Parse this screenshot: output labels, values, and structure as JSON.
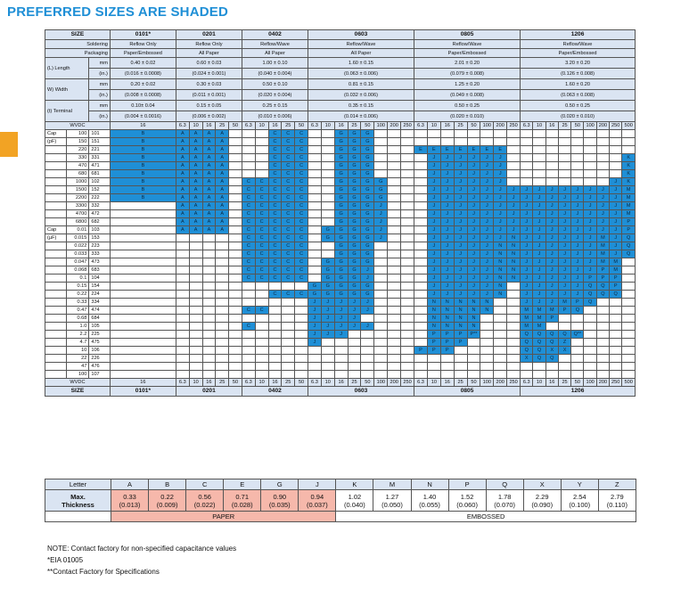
{
  "title": "PREFERRED SIZES ARE SHADED",
  "colors": {
    "accent": "#1f8fd6",
    "header": "#dae4f2",
    "paper": "#f6b8ab",
    "tab": "#f2a324"
  },
  "header": {
    "size_label": "SIZE",
    "sizes": [
      "0101*",
      "0201",
      "0402",
      "0603",
      "0805",
      "1206"
    ],
    "soldering_label": "Soldering",
    "soldering": [
      "Reflow Only",
      "Reflow Only",
      "Reflow/Wave",
      "Reflow/Wave",
      "Reflow/Wave",
      "Reflow/Wave"
    ],
    "packaging_label": "Packaging",
    "packaging": [
      "Paper/Embossed",
      "All Paper",
      "All Paper",
      "All Paper",
      "Paper/Embossed",
      "Paper/Embossed"
    ],
    "length_label": "(L) Length",
    "width_label": "W) Width",
    "terminal_label": "(t) Terminal",
    "unit_mm": "mm",
    "unit_in": "(in.)",
    "length_mm": [
      "0.40 ± 0.02",
      "0.60 ± 0.03",
      "1.00 ± 0.10",
      "1.60 ± 0.15",
      "2.01 ± 0.20",
      "3.20 ± 0.20"
    ],
    "length_in": [
      "(0.016 ± 0.0008)",
      "(0.024 ± 0.001)",
      "(0.040 ± 0.004)",
      "(0.063 ± 0.006)",
      "(0.079 ± 0.008)",
      "(0.126 ± 0.008)"
    ],
    "width_mm": [
      "0.20 ± 0.02",
      "0.30 ± 0.03",
      "0.50 ± 0.10",
      "0.81 ± 0.15",
      "1.25 ± 0.20",
      "1.60 ± 0.20"
    ],
    "width_in": [
      "(0.008 ± 0.0008)",
      "(0.011 ± 0.001)",
      "(0.020 ± 0.004)",
      "(0.032 ± 0.006)",
      "(0.049 ± 0.008)",
      "(0.063 ± 0.008)"
    ],
    "term_mm": [
      "0.10± 0.04",
      "0.15 ± 0.05",
      "0.25 ± 0.15",
      "0.35 ± 0.15",
      "0.50 ± 0.25",
      "0.50 ± 0.25"
    ],
    "term_in": [
      "(0.004 ± 0.0016)",
      "(0.006 ± 0.002)",
      "(0.010 ± 0.006)",
      "(0.014 ± 0.006)",
      "(0.020 ± 0.010)",
      "(0.020 ± 0.010)"
    ],
    "wvdc_label": "WVDC",
    "wvdc_0101": "16",
    "wvdc_0201": [
      "6.3",
      "10",
      "16",
      "25",
      "50"
    ],
    "wvdc_0402": [
      "6.3",
      "10",
      "16",
      "25",
      "50"
    ],
    "wvdc_0603": [
      "6.3",
      "10",
      "16",
      "25",
      "50",
      "100",
      "200",
      "250"
    ],
    "wvdc_0805": [
      "6.3",
      "10",
      "16",
      "25",
      "50",
      "100",
      "200",
      "250"
    ],
    "wvdc_1206": [
      "6.3",
      "10",
      "16",
      "25",
      "50",
      "100",
      "200",
      "250",
      "500"
    ]
  },
  "rows": [
    {
      "unit": "Cap",
      "cap": "100",
      "code": "101",
      "c": [
        "B",
        "A A A A ·",
        "· · C C C",
        "· · G G G · · ·",
        "· · · · · · · ·",
        "· · · · · · · · ·"
      ]
    },
    {
      "unit": "(pF)",
      "cap": "150",
      "code": "151",
      "c": [
        "B",
        "A A A A ·",
        "· · C C C",
        "· · G G G · · ·",
        "· · · · · · · ·",
        "· · · · · · · · ·"
      ]
    },
    {
      "unit": "",
      "cap": "220",
      "code": "221",
      "c": [
        "B",
        "A A A A ·",
        "· · C C C",
        "· · G G G · · ·",
        "E E E E E E E ·",
        "· · · · · · · · ·"
      ]
    },
    {
      "unit": "",
      "cap": "330",
      "code": "331",
      "c": [
        "B",
        "A A A A ·",
        "· · C C C",
        "· · G G G · · ·",
        "· J J J J J J ·",
        "· · · · · · · · K"
      ]
    },
    {
      "unit": "",
      "cap": "470",
      "code": "471",
      "c": [
        "B",
        "A A A A ·",
        "· · C C C",
        "· · G G G · · ·",
        "· J J J J J J ·",
        "· · · · · · · · K"
      ]
    },
    {
      "unit": "",
      "cap": "680",
      "code": "681",
      "c": [
        "B",
        "A A A A ·",
        "· · C C C",
        "· · G G G · · ·",
        "· J J J J J J ·",
        "· · · · · · · · K"
      ]
    },
    {
      "unit": "",
      "cap": "1000",
      "code": "102",
      "c": [
        "B",
        "A A A A ·",
        "C C C C C",
        "· · G G G G · ·",
        "· J J J J J J ·",
        "· · · · · · · J K"
      ]
    },
    {
      "unit": "",
      "cap": "1500",
      "code": "152",
      "c": [
        "B",
        "A A A A ·",
        "C C C C C",
        "· · G G G G · ·",
        "· J J J J J J J",
        "J J J J J J J J M"
      ]
    },
    {
      "unit": "",
      "cap": "2200",
      "code": "222",
      "c": [
        "B",
        "A A A A ·",
        "C C C C C",
        "· · G G G G · ·",
        "· J J J J J J J",
        "J J J J J J J J M"
      ]
    },
    {
      "unit": "",
      "cap": "3300",
      "code": "332",
      "c": [
        "·",
        "A A A A ·",
        "C C C C C",
        "· · G G G J · ·",
        "· J J J J J J J",
        "J J J J J J J J M"
      ]
    },
    {
      "unit": "",
      "cap": "4700",
      "code": "472",
      "c": [
        "·",
        "A A A A ·",
        "C C C C C",
        "· · G G G J · ·",
        "· J J J J J J J",
        "J J J J J J J J M"
      ]
    },
    {
      "unit": "",
      "cap": "6800",
      "code": "682",
      "c": [
        "·",
        "A A A A ·",
        "C C C C C",
        "· · G G G J · ·",
        "· J J J J J J J",
        "J J J J J J J J P"
      ]
    },
    {
      "unit": "Cap",
      "cap": "0.01",
      "code": "103",
      "c": [
        "·",
        "A A A A ·",
        "C C C C C",
        "· G G G G J · ·",
        "· J J J J J J J",
        "J J J J J J J J P"
      ]
    },
    {
      "unit": "(µF)",
      "cap": "0.015",
      "code": "153",
      "c": [
        "·",
        "· · · · ·",
        "C C C C C",
        "· G G G G J · ·",
        "· J J J J J J N",
        "J J J J J J M J Q"
      ]
    },
    {
      "unit": "",
      "cap": "0.022",
      "code": "223",
      "c": [
        "·",
        "· · · · ·",
        "C C C C C",
        "· · G G G · · ·",
        "· J J J J J N N",
        "J J J J J J M J Q"
      ]
    },
    {
      "unit": "",
      "cap": "0.033",
      "code": "333",
      "c": [
        "·",
        "· · · · ·",
        "C C C C C",
        "· · G G G · · ·",
        "· J J J J J N N",
        "J J J J J J M J Q"
      ]
    },
    {
      "unit": "",
      "cap": "0.047",
      "code": "473",
      "c": [
        "·",
        "· · · · ·",
        "C C C C C",
        "· G G G G · · ·",
        "· J J J J J N N",
        "J J J J J J M M ·"
      ]
    },
    {
      "unit": "",
      "cap": "0.068",
      "code": "683",
      "c": [
        "·",
        "· · · · ·",
        "C C C C C",
        "· G G G J · · ·",
        "· J J J J J N N",
        "J J J J J J P M ·"
      ]
    },
    {
      "unit": "",
      "cap": "0.1",
      "code": "104",
      "c": [
        "·",
        "· · · · ·",
        "C C C C C",
        "· G G G J · · ·",
        "· J J J J J N N",
        "J J J J J P P P ·"
      ]
    },
    {
      "unit": "",
      "cap": "0.15",
      "code": "154",
      "c": [
        "·",
        "· · · · ·",
        "· · · · ·",
        "G G G G G · · ·",
        "· J J J J J N ·",
        "J J J J J Q Q P ·"
      ]
    },
    {
      "unit": "",
      "cap": "0.22",
      "code": "224",
      "c": [
        "·",
        "· · · · ·",
        "· · C C C",
        "G G G G G · · ·",
        "· J J J J J N ·",
        "J J J J J Q Q Q ·"
      ]
    },
    {
      "unit": "",
      "cap": "0.33",
      "code": "334",
      "c": [
        "·",
        "· · · · ·",
        "· · · · ·",
        "J J J J J · · ·",
        "· N N N N N · ·",
        "J J J M P Q · · ·"
      ]
    },
    {
      "unit": "",
      "cap": "0.47",
      "code": "474",
      "c": [
        "·",
        "· · · · ·",
        "C C · · ·",
        "J J J J J · · ·",
        "· N N N N N · ·",
        "M M M P Q · · · ·"
      ]
    },
    {
      "unit": "",
      "cap": "0.68",
      "code": "684",
      "c": [
        "·",
        "· · · · ·",
        "· · · · ·",
        "J J J J · · · ·",
        "· N N N N · · ·",
        "M M P · · · · · ·"
      ]
    },
    {
      "unit": "",
      "cap": "1.0",
      "code": "105",
      "c": [
        "·",
        "· · · · ·",
        "C · · · ·",
        "J J J J J · · ·",
        "· N N N N · · ·",
        "M M · · · · · · ·"
      ]
    },
    {
      "unit": "",
      "cap": "2.2",
      "code": "225",
      "c": [
        "·",
        "· · · · ·",
        "· · · · ·",
        "J J J · · · · ·",
        "· P P P P** · · ·",
        "Q Q Q Q Q** · · · ·"
      ]
    },
    {
      "unit": "",
      "cap": "4.7",
      "code": "475",
      "c": [
        "·",
        "· · · · ·",
        "· · · · ·",
        "J · · · · · · ·",
        "· P P P · · · ·",
        "Q Q Q Z · · · · ·"
      ]
    },
    {
      "unit": "",
      "cap": "10",
      "code": "106",
      "c": [
        "·",
        "· · · · ·",
        "· · · · ·",
        "· · · · · · · ·",
        "P P P · · · · ·",
        "Q Q X X · · · · ·"
      ]
    },
    {
      "unit": "",
      "cap": "22",
      "code": "226",
      "c": [
        "·",
        "· · · · ·",
        "· · · · ·",
        "· · · · · · · ·",
        "· · · · · · · ·",
        "X Q Q · · · · · ·"
      ]
    },
    {
      "unit": "",
      "cap": "47",
      "code": "476",
      "c": [
        "·",
        "· · · · ·",
        "· · · · ·",
        "· · · · · · · ·",
        "· · · · · · · ·",
        "· · · · · · · · ·"
      ]
    },
    {
      "unit": "",
      "cap": "100",
      "code": "107",
      "c": [
        "·",
        "· · · · ·",
        "· · · · ·",
        "· · · · · · · ·",
        "· · · · · · · ·",
        "· · · · · · · · ·"
      ]
    }
  ],
  "legend": {
    "letter_label": "Letter",
    "max_label": "Max.",
    "thickness_label": "Thickness",
    "letters": [
      "A",
      "B",
      "C",
      "E",
      "G",
      "J",
      "K",
      "M",
      "N",
      "P",
      "Q",
      "X",
      "Y",
      "Z"
    ],
    "mm": [
      "0.33",
      "0.22",
      "0.56",
      "0.71",
      "0.90",
      "0.94",
      "1.02",
      "1.27",
      "1.40",
      "1.52",
      "1.78",
      "2.29",
      "2.54",
      "2.79"
    ],
    "in": [
      "(0.013)",
      "(0.009)",
      "(0.022)",
      "(0.028)",
      "(0.035)",
      "(0.037)",
      "(0.040)",
      "(0.050)",
      "(0.055)",
      "(0.060)",
      "(0.070)",
      "(0.090)",
      "(0.100)",
      "(0.110)"
    ],
    "paper": "PAPER",
    "embossed": "EMBOSSED"
  },
  "notes": [
    "NOTE: Contact factory for non-specified capacitance values",
    "*EIA 01005",
    "**Contact Factory for Specifications"
  ]
}
